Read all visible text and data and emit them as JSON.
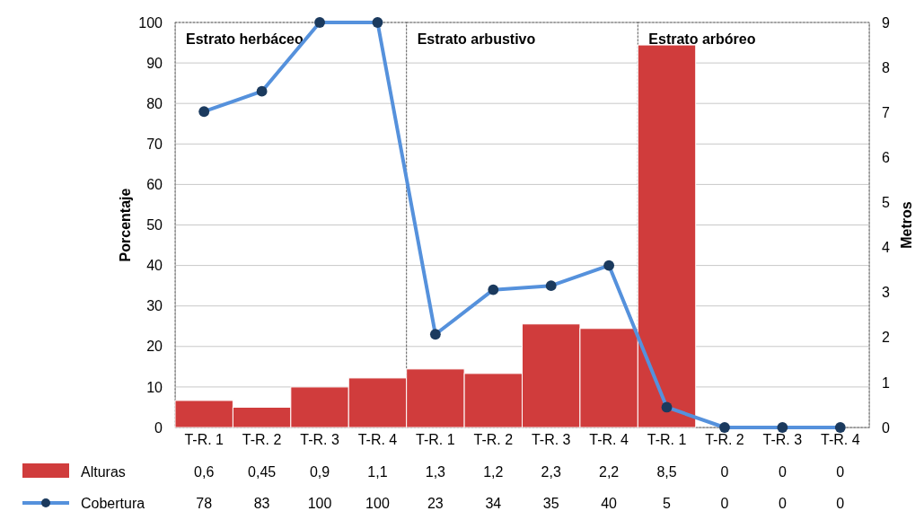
{
  "chart_data": {
    "type": "bar",
    "categories": [
      "T-R. 1",
      "T-R. 2",
      "T-R. 3",
      "T-R. 4",
      "T-R. 1",
      "T-R. 2",
      "T-R. 3",
      "T-R. 4",
      "T-R. 1",
      "T-R. 2",
      "T-R. 3",
      "T-R. 4"
    ],
    "series": [
      {
        "name": "Alturas",
        "axis": "y2",
        "color": "#d03c3c",
        "values": [
          0.6,
          0.45,
          0.9,
          1.1,
          1.3,
          1.2,
          2.3,
          2.2,
          8.5,
          0,
          0,
          0
        ],
        "value_labels": [
          "0,6",
          "0,45",
          "0,9",
          "1,1",
          "1,3",
          "1,2",
          "2,3",
          "2,2",
          "8,5",
          "0",
          "0",
          "0"
        ]
      },
      {
        "name": "Cobertura",
        "type": "line",
        "color": "#5591dc",
        "values": [
          78,
          83,
          100,
          100,
          23,
          34,
          35,
          40,
          5,
          0,
          0,
          0
        ]
      }
    ],
    "ylabel": "Porcentaje",
    "y2label": "Metros",
    "ylim": [
      0,
      100
    ],
    "yticks": [
      0,
      10,
      20,
      30,
      40,
      50,
      60,
      70,
      80,
      90,
      100
    ],
    "y2lim": [
      0,
      9
    ],
    "y2ticks": [
      0,
      1,
      2,
      3,
      4,
      5,
      6,
      7,
      8,
      9
    ],
    "annotations": [
      "Estrato herbáceo",
      "Estrato arbustivo",
      "Estrato arbóreo"
    ],
    "grid": "y",
    "legend": "bottom",
    "data_labels": true,
    "marker": "circle",
    "line_style": "solid"
  }
}
